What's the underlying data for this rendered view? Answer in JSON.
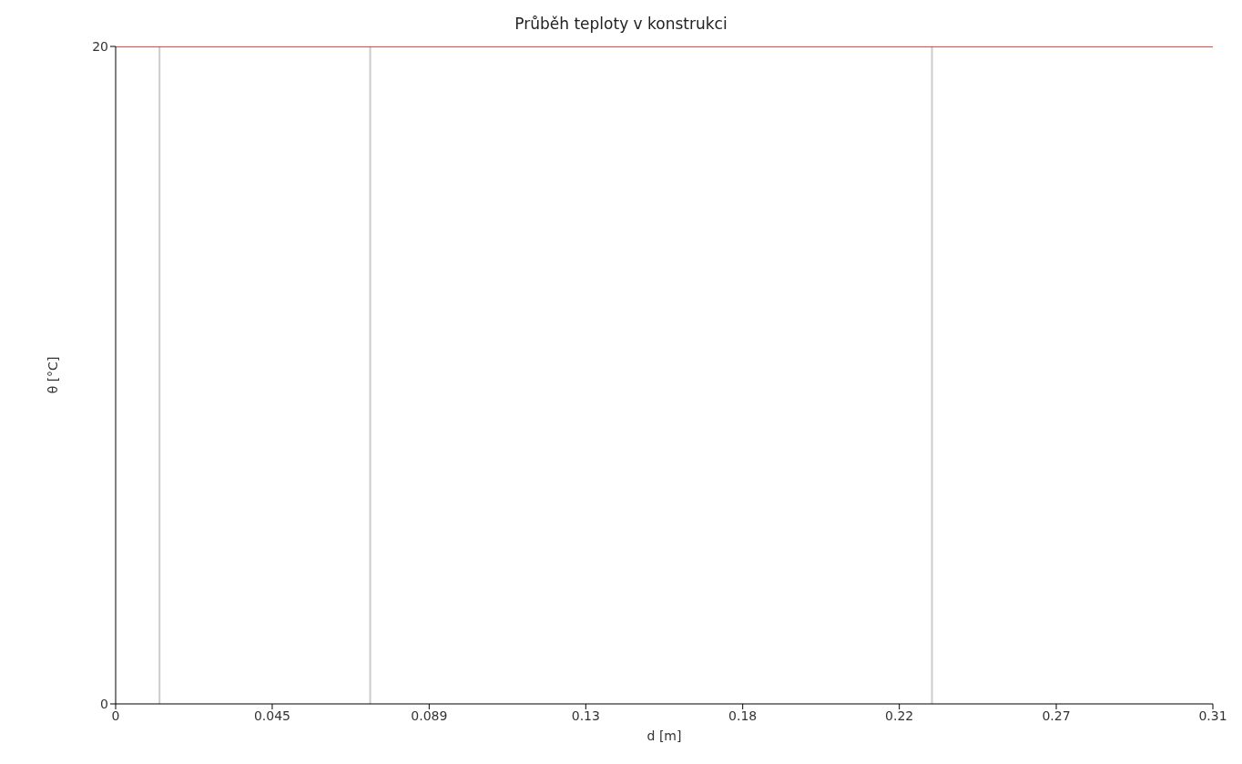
{
  "chart_data": {
    "type": "line",
    "title": "Průběh teploty v konstrukci",
    "xlabel": "d [m]",
    "ylabel": "θ [°C]",
    "x": [
      0,
      0.3125
    ],
    "series": [
      {
        "color": "#ff0000",
        "values": [
          20,
          20
        ]
      }
    ],
    "xlim": [
      0,
      0.3125
    ],
    "xticks": [
      0,
      {
        "value": 0.0446,
        "label": "0.045"
      },
      {
        "value": 0.0893,
        "label": "0.089"
      },
      {
        "value": 0.1339,
        "label": "0.13"
      },
      {
        "value": 0.1786,
        "label": "0.18"
      },
      {
        "value": 0.2232,
        "label": "0.22"
      },
      {
        "value": 0.2679,
        "label": "0.27"
      },
      {
        "value": 0.3125,
        "label": "0.31"
      }
    ],
    "ylim": [
      0,
      20
    ],
    "yticks": [
      0,
      20
    ],
    "ref_lines": [
      {
        "axis": "x",
        "value": 0.0125,
        "color": "#cccccc"
      },
      {
        "axis": "x",
        "value": 0.0725,
        "color": "#cccccc"
      },
      {
        "axis": "x",
        "value": 0.2325,
        "color": "#cccccc"
      }
    ],
    "grid": false,
    "legend": false,
    "marker": "none",
    "line_style": "solid"
  }
}
